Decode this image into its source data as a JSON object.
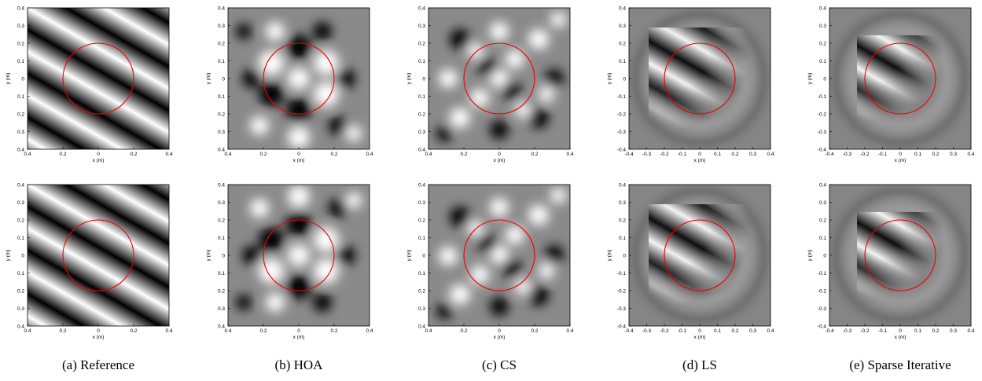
{
  "panels": [
    {
      "caption": "(a) Reference",
      "plots": [
        {
          "xlabel": "x (m)",
          "ylabel": "y (m)",
          "xticks": [
            "0.4",
            "0.2",
            "0",
            "0.2",
            "0.4"
          ],
          "yticks": [
            "0.4",
            "0.3",
            "0.2",
            "0.1",
            "0",
            "0.1",
            "0.2",
            "0.3",
            "0.4"
          ]
        },
        {
          "xlabel": "x (m)",
          "ylabel": "y (m)",
          "xticks": [
            "0.4",
            "0.2",
            "0",
            "0.2",
            "0.4"
          ],
          "yticks": [
            "0.4",
            "0.3",
            "0.2",
            "0.1",
            "0",
            "0.1",
            "0.2",
            "0.3",
            "0.4"
          ]
        }
      ]
    },
    {
      "caption": "(b) HOA",
      "plots": [
        {
          "xlabel": "x (m)",
          "ylabel": "y (m)",
          "xticks": [
            "0.4",
            "0.2",
            "0",
            "0.2",
            "0.4"
          ],
          "yticks": [
            "0.4",
            "0.3",
            "0.2",
            "0.1",
            "0",
            "0.1",
            "0.2",
            "0.3",
            "0.4"
          ]
        },
        {
          "xlabel": "x (m)",
          "ylabel": "y (m)",
          "xticks": [
            "0.4",
            "0.2",
            "0",
            "0.2",
            "0.4"
          ],
          "yticks": [
            "0.4",
            "0.3",
            "0.2",
            "0.1",
            "0",
            "0.1",
            "0.2",
            "0.3",
            "0.4"
          ]
        }
      ]
    },
    {
      "caption": "(c) CS",
      "plots": [
        {
          "xlabel": "x (m)",
          "ylabel": "y (m)",
          "xticks": [
            "0.4",
            "0.2",
            "0",
            "0.2",
            "0.4"
          ],
          "yticks": [
            "0.4",
            "0.3",
            "0.2",
            "0.1",
            "0",
            "0.1",
            "0.2",
            "0.3",
            "0.4"
          ]
        },
        {
          "xlabel": "x (m)",
          "ylabel": "y (m)",
          "xticks": [
            "0.4",
            "0.2",
            "0",
            "0.2",
            "0.4"
          ],
          "yticks": [
            "0.4",
            "0.3",
            "0.2",
            "0.1",
            "0",
            "0.1",
            "0.2",
            "0.3",
            "0.4"
          ]
        }
      ]
    },
    {
      "caption": "(d) LS",
      "plots": [
        {
          "xlabel": "x (m)",
          "ylabel": "y (m)",
          "xticks": [
            "-0.4",
            "-0.3",
            "-0.2",
            "-0.1",
            "0",
            "0.1",
            "0.2",
            "0.3",
            "0.4"
          ],
          "yticks": [
            "0.4",
            "0.3",
            "0.2",
            "0.1",
            "0",
            "-0.1",
            "-0.2",
            "-0.3",
            "-0.4"
          ]
        },
        {
          "xlabel": "x (m)",
          "ylabel": "y (m)",
          "xticks": [
            "-0.4",
            "-0.3",
            "-0.2",
            "-0.1",
            "0",
            "0.1",
            "0.2",
            "0.3",
            "0.4"
          ],
          "yticks": [
            "0.4",
            "0.3",
            "0.2",
            "0.1",
            "0",
            "-0.1",
            "-0.2",
            "-0.3",
            "-0.4"
          ]
        }
      ]
    },
    {
      "caption": "(e) Sparse Iterative",
      "plots": [
        {
          "xlabel": "x (m)",
          "ylabel": "y (m)",
          "xticks": [
            "-0.4",
            "-0.3",
            "-0.2",
            "-0.1",
            "0",
            "0.1",
            "0.2",
            "0.3",
            "0.4"
          ],
          "yticks": [
            "0.4",
            "0.3",
            "0.2",
            "0.1",
            "0",
            "-0.1",
            "-0.2",
            "-0.3",
            "-0.4"
          ]
        },
        {
          "xlabel": "x (m)",
          "ylabel": "y (m)",
          "xticks": [
            "-0.4",
            "-0.3",
            "-0.2",
            "-0.1",
            "0",
            "0.1",
            "0.2",
            "0.3",
            "0.4"
          ],
          "yticks": [
            "0.4",
            "0.3",
            "0.2",
            "0.1",
            "0",
            "-0.1",
            "-0.2",
            "-0.3",
            "-0.4"
          ]
        }
      ]
    }
  ]
}
